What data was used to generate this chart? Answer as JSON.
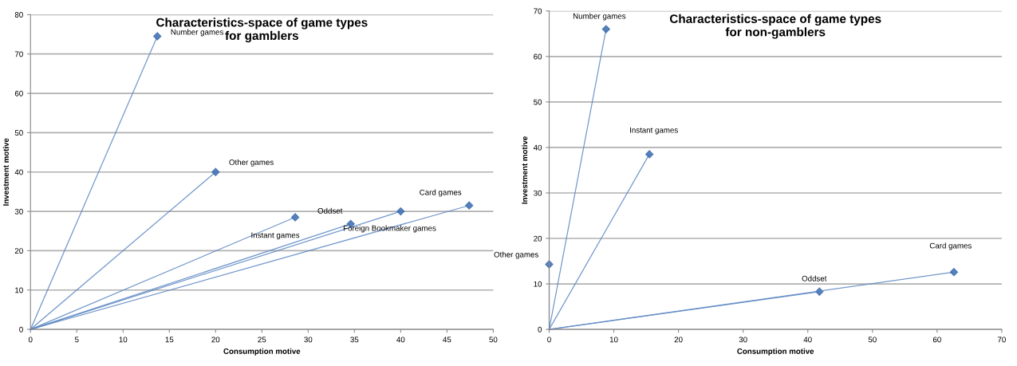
{
  "chart_data": [
    {
      "type": "line",
      "title": "Characteristics-space of game types\nfor gamblers",
      "xlabel": "Consumption motive",
      "ylabel": "Investment motive",
      "xlim": [
        0,
        50
      ],
      "ylim": [
        0,
        80
      ],
      "xticks": [
        0,
        5,
        10,
        15,
        20,
        25,
        30,
        35,
        40,
        45,
        50
      ],
      "yticks": [
        0,
        10,
        20,
        30,
        40,
        50,
        60,
        70,
        80
      ],
      "grid": "y",
      "marker": "diamond",
      "legend": false,
      "series": [
        {
          "name": "Number games",
          "color": "#5a86c2",
          "x": [
            0,
            13.7
          ],
          "values": [
            0,
            74.5
          ]
        },
        {
          "name": "Other games",
          "color": "#5a86c2",
          "x": [
            0,
            20
          ],
          "values": [
            0,
            40
          ]
        },
        {
          "name": "Instant games",
          "color": "#5a86c2",
          "x": [
            0,
            28.6
          ],
          "values": [
            0,
            28.5
          ]
        },
        {
          "name": "Oddset",
          "color": "#5a86c2",
          "x": [
            0,
            34.6
          ],
          "values": [
            0,
            26.8
          ]
        },
        {
          "name": "Foreign Bookmaker games",
          "color": "#5a86c2",
          "x": [
            0,
            40
          ],
          "values": [
            0,
            30
          ]
        },
        {
          "name": "Card games",
          "color": "#5a86c2",
          "x": [
            0,
            47.4
          ],
          "values": [
            0,
            31.5
          ]
        }
      ]
    },
    {
      "type": "line",
      "title": "Characteristics-space of game types\nfor non-gamblers",
      "xlabel": "Consumption motive",
      "ylabel": "Investment motive",
      "xlim": [
        0,
        70
      ],
      "ylim": [
        0,
        70
      ],
      "xticks": [
        0,
        10,
        20,
        30,
        40,
        50,
        60,
        70
      ],
      "yticks": [
        0,
        10,
        20,
        30,
        40,
        50,
        60,
        70
      ],
      "grid": "y",
      "marker": "diamond",
      "legend": false,
      "series": [
        {
          "name": "Number games",
          "color": "#5a86c2",
          "x": [
            0,
            8.8
          ],
          "values": [
            0,
            66
          ]
        },
        {
          "name": "Instant games",
          "color": "#5a86c2",
          "x": [
            0,
            15.5
          ],
          "values": [
            0,
            38.5
          ]
        },
        {
          "name": "Other games",
          "color": "#5a86c2",
          "x": [
            0,
            0
          ],
          "values": [
            0,
            14.3
          ]
        },
        {
          "name": "Oddset",
          "color": "#5a86c2",
          "x": [
            0,
            41.8
          ],
          "values": [
            0,
            8.3
          ]
        },
        {
          "name": "Card games",
          "color": "#5a86c2",
          "x": [
            0,
            62.6
          ],
          "values": [
            0,
            12.6
          ]
        }
      ]
    }
  ]
}
